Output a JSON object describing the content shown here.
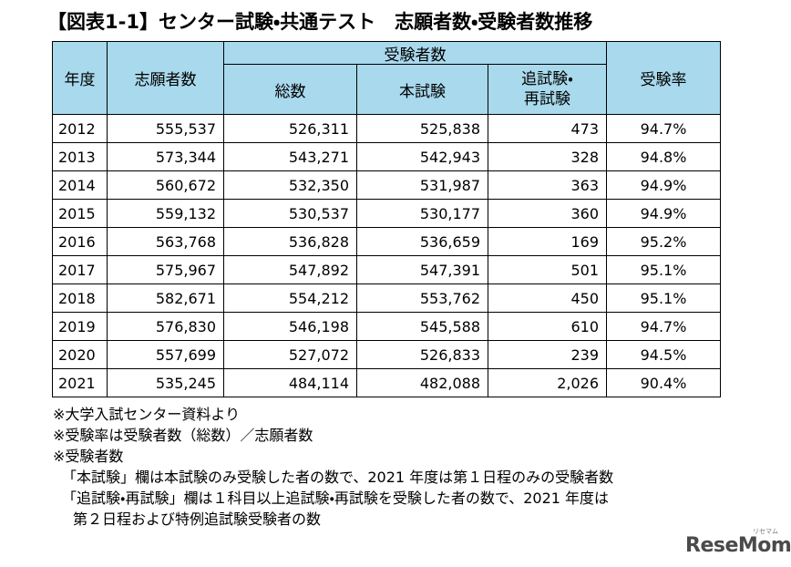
{
  "header": {
    "title": "【図表1-1】センター試験・共通テスト　志願者数・受験者数推移"
  },
  "table": {
    "columns": {
      "year": "年度",
      "applicants": "志願者数",
      "examinees": "受験者数",
      "total": "総数",
      "main": "本試験",
      "makeup": [
        "追試験・",
        "再試験"
      ],
      "rate": "受験率"
    },
    "rows": [
      [
        "2012",
        "555,537",
        "526,311",
        "525,838",
        "473",
        "94.7%"
      ],
      [
        "2013",
        "573,344",
        "543,271",
        "542,943",
        "328",
        "94.8%"
      ],
      [
        "2014",
        "560,672",
        "532,350",
        "531,987",
        "363",
        "94.9%"
      ],
      [
        "2015",
        "559,132",
        "530,537",
        "530,177",
        "360",
        "94.9%"
      ],
      [
        "2016",
        "563,768",
        "536,828",
        "536,659",
        "169",
        "95.2%"
      ],
      [
        "2017",
        "575,967",
        "547,892",
        "547,391",
        "501",
        "95.1%"
      ],
      [
        "2018",
        "582,671",
        "554,212",
        "553,762",
        "450",
        "95.1%"
      ],
      [
        "2019",
        "576,830",
        "546,198",
        "545,588",
        "610",
        "94.7%"
      ],
      [
        "2020",
        "557,699",
        "527,072",
        "526,833",
        "239",
        "94.5%"
      ],
      [
        "2021",
        "535,245",
        "484,114",
        "482,088",
        "2,026",
        "90.4%"
      ]
    ]
  },
  "notes": [
    "※大学入試センター資料より",
    "※受験率は受験者数（総数）／志願者数",
    "※受験者数",
    "「本試験」欄は本試験のみ受験した者の数で、2021 年度は第１日程のみの受験者数",
    "「追試験・再試験」欄は１科目以上追試験・再試験を受験した者の数で、2021 年度は",
    "第２日程および特例追試験受験者の数"
  ],
  "logo": {
    "text": "ReseMom",
    "kana": "リセマム"
  }
}
